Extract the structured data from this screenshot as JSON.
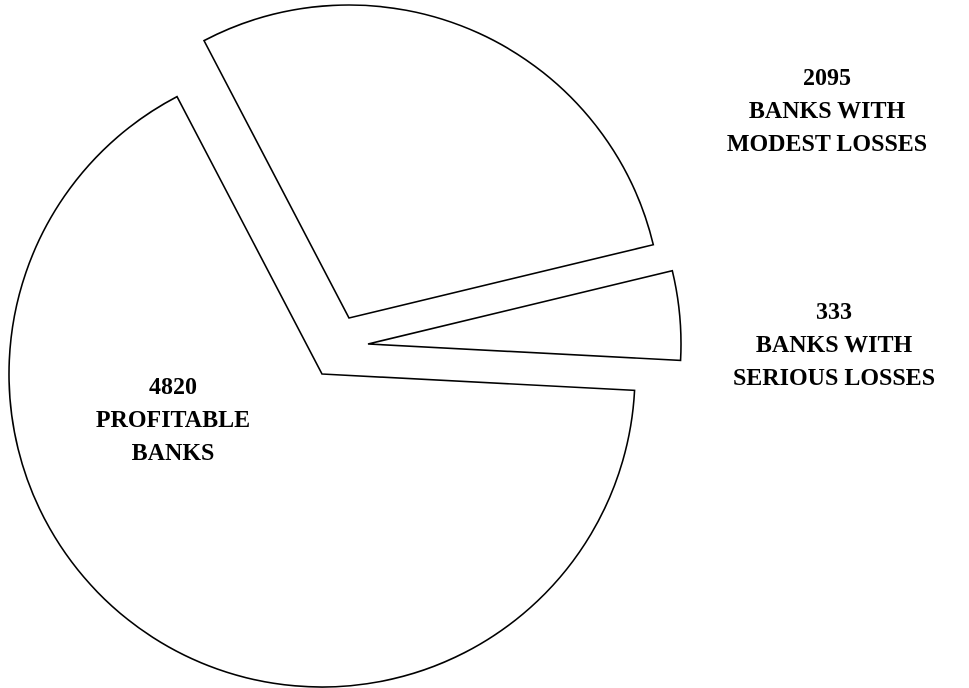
{
  "chart_data": {
    "type": "pie",
    "title": "",
    "slices": [
      {
        "value": 4820,
        "label": [
          "4820",
          "PROFITABLE",
          "BANKS"
        ]
      },
      {
        "value": 2095,
        "label": [
          "2095",
          "BANKS WITH",
          "MODEST LOSSES"
        ]
      },
      {
        "value": 333,
        "label": [
          "333",
          "BANKS WITH",
          "SERIOUS LOSSES"
        ]
      }
    ],
    "exploded": true,
    "legend": "none",
    "colors": {
      "fill": "#ffffff",
      "stroke": "#000000"
    }
  }
}
